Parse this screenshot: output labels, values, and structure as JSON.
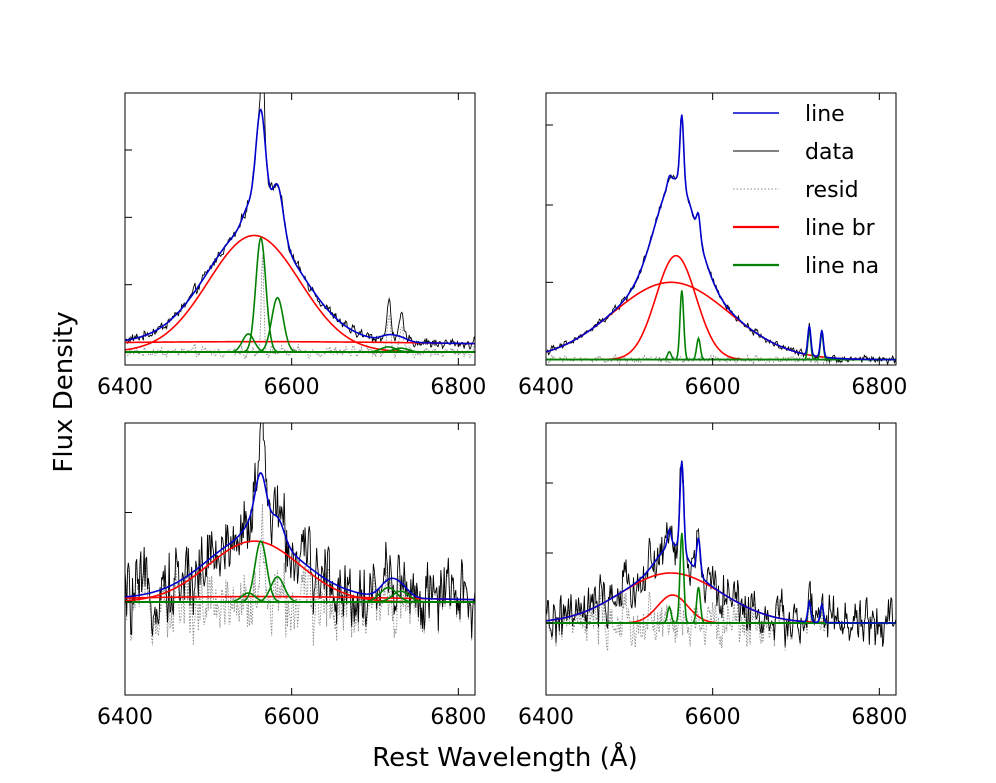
{
  "figure": {
    "ylabel": "Flux Density",
    "xlabel": "Rest Wavelength (Å)"
  },
  "legend": {
    "entries": [
      {
        "label": "line",
        "color": "#0000cc",
        "style": "solid",
        "width": 1.6
      },
      {
        "label": "data",
        "color": "#000000",
        "style": "solid",
        "width": 0.9
      },
      {
        "label": "resid",
        "color": "#888888",
        "style": "dotted",
        "width": 1
      },
      {
        "label": "line br",
        "color": "#ff0000",
        "style": "solid",
        "width": 2.2
      },
      {
        "label": "line na",
        "color": "#008000",
        "style": "solid",
        "width": 2.2
      }
    ]
  },
  "chart_data": [
    {
      "type": "line",
      "panel": "top-left",
      "xlim": [
        6400,
        6820
      ],
      "xticks": [
        "6400",
        "6600",
        "6800"
      ],
      "ylim": [
        -0.05,
        1.0
      ],
      "baseline": 0.0,
      "noise": 0.012,
      "broad": [
        {
          "center": 6555,
          "amp": 0.45,
          "sigma": 55
        },
        {
          "center": 6560,
          "amp": 0.04,
          "sigma": 400
        }
      ],
      "narrow": [
        {
          "center": 6563,
          "amp": 0.44,
          "sigma": 6
        },
        {
          "center": 6583,
          "amp": 0.21,
          "sigma": 7
        },
        {
          "center": 6548,
          "amp": 0.07,
          "sigma": 7
        },
        {
          "center": 6716,
          "amp": 0.02,
          "sigma": 9
        },
        {
          "center": 6731,
          "amp": 0.015,
          "sigma": 9
        }
      ],
      "data_spikes": [
        {
          "center": 6565,
          "amp": 0.38,
          "sigma": 1.6
        },
        {
          "center": 6717,
          "amp": 0.14,
          "sigma": 2
        },
        {
          "center": 6732,
          "amp": 0.09,
          "sigma": 2
        }
      ],
      "yticks": [
        0.26,
        0.52,
        0.78,
        1.02
      ]
    },
    {
      "type": "line",
      "panel": "top-right",
      "xlim": [
        6400,
        6820
      ],
      "xticks": [
        "6400",
        "6600",
        "6800"
      ],
      "ylim": [
        -0.02,
        1.0
      ],
      "baseline": 0.0,
      "noise": 0.008,
      "broad": [
        {
          "center": 6550,
          "amp": 0.29,
          "sigma": 70
        },
        {
          "center": 6556,
          "amp": 0.39,
          "sigma": 24
        }
      ],
      "narrow": [
        {
          "center": 6563,
          "amp": 0.26,
          "sigma": 2.2
        },
        {
          "center": 6583,
          "amp": 0.08,
          "sigma": 2.2
        },
        {
          "center": 6548,
          "amp": 0.03,
          "sigma": 2.2
        },
        {
          "center": 6716,
          "amp": 0.11,
          "sigma": 1.8
        },
        {
          "center": 6731,
          "amp": 0.1,
          "sigma": 1.8
        }
      ],
      "data_spikes": [],
      "yticks": [
        0.29,
        0.58,
        0.88
      ]
    },
    {
      "type": "line",
      "panel": "bottom-left",
      "xlim": [
        6400,
        6820
      ],
      "xticks": [
        "6400",
        "6600",
        "6800"
      ],
      "ylim": [
        -0.52,
        1.0
      ],
      "baseline": 0.0,
      "noise": 0.12,
      "broad": [
        {
          "center": 6555,
          "amp": 0.34,
          "sigma": 55
        },
        {
          "center": 6560,
          "amp": 0.03,
          "sigma": 200
        }
      ],
      "narrow": [
        {
          "center": 6563,
          "amp": 0.34,
          "sigma": 7
        },
        {
          "center": 6583,
          "amp": 0.14,
          "sigma": 8
        },
        {
          "center": 6548,
          "amp": 0.05,
          "sigma": 8
        },
        {
          "center": 6716,
          "amp": 0.08,
          "sigma": 10
        },
        {
          "center": 6731,
          "amp": 0.06,
          "sigma": 10
        }
      ],
      "data_spikes": [
        {
          "center": 6565,
          "amp": 0.45,
          "sigma": 1.6
        }
      ],
      "yticks": [
        0.0,
        0.5,
        1.0
      ]
    },
    {
      "type": "line",
      "panel": "bottom-right",
      "xlim": [
        6400,
        6820
      ],
      "xticks": [
        "6400",
        "6600",
        "6800"
      ],
      "ylim": [
        -0.36,
        1.0
      ],
      "baseline": 0.0,
      "noise": 0.07,
      "broad": [
        {
          "center": 6550,
          "amp": 0.25,
          "sigma": 60
        },
        {
          "center": 6552,
          "amp": 0.14,
          "sigma": 18
        }
      ],
      "narrow": [
        {
          "center": 6563,
          "amp": 0.45,
          "sigma": 2.2
        },
        {
          "center": 6583,
          "amp": 0.18,
          "sigma": 2.2
        },
        {
          "center": 6548,
          "amp": 0.08,
          "sigma": 2.2
        },
        {
          "center": 6716,
          "amp": 0.1,
          "sigma": 1.8
        },
        {
          "center": 6731,
          "amp": 0.09,
          "sigma": 1.8
        }
      ],
      "data_spikes": [],
      "yticks": [
        0.0,
        0.35,
        0.7,
        1.0
      ]
    }
  ]
}
